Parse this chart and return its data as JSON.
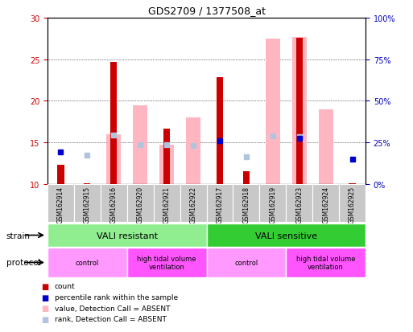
{
  "title": "GDS2709 / 1377508_at",
  "samples": [
    "GSM162914",
    "GSM162915",
    "GSM162916",
    "GSM162920",
    "GSM162921",
    "GSM162922",
    "GSM162917",
    "GSM162918",
    "GSM162919",
    "GSM162923",
    "GSM162924",
    "GSM162925"
  ],
  "count_values": [
    12.3,
    10.1,
    24.7,
    null,
    16.6,
    null,
    22.8,
    11.5,
    null,
    27.6,
    null,
    10.1
  ],
  "rank_values": [
    13.8,
    null,
    null,
    null,
    null,
    null,
    15.2,
    null,
    null,
    15.5,
    null,
    13.0
  ],
  "absent_value_values": [
    null,
    null,
    16.0,
    19.4,
    14.7,
    18.0,
    null,
    null,
    27.5,
    27.7,
    19.0,
    null
  ],
  "absent_rank_values": [
    null,
    13.5,
    15.9,
    14.7,
    14.7,
    14.6,
    null,
    13.3,
    15.8,
    15.7,
    null,
    null
  ],
  "ylim": [
    10,
    30
  ],
  "yticks_left": [
    10,
    15,
    20,
    25,
    30
  ],
  "yticks_right": [
    0,
    25,
    50,
    75,
    100
  ],
  "count_color": "#CC0000",
  "rank_color": "#0000CC",
  "absent_value_color": "#FFB6C1",
  "absent_rank_color": "#B0C4DE",
  "bg_color": "#FFFFFF",
  "tick_label_color_left": "#CC0000",
  "tick_label_color_right": "#0000BB",
  "strain_resistant_color": "#90EE90",
  "strain_sensitive_color": "#33CC33",
  "protocol_control_color": "#FF99FF",
  "protocol_htv_color": "#FF55FF",
  "sample_bg_color": "#C8C8C8"
}
